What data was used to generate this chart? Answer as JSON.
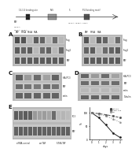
{
  "bg_color": "#e8e8e8",
  "white": "#ffffff",
  "black": "#111111",
  "dark_gray": "#333333",
  "mid_gray": "#888888",
  "light_gray": "#cccccc",
  "gel_bg": "#aaaaaa",
  "gel_band_dark": "#222222",
  "gel_band_light": "#dddddd",
  "schematic_top_labels": [
    "14-3-3 binding site",
    "NLS",
    "5'",
    "P53 binding motif"
  ],
  "schematic_bottom_labels": [
    "TAF",
    "S76A  S92A",
    "S76A  S92A  S8A"
  ],
  "panel_labels": [
    "A",
    "B",
    "C",
    "D",
    "E"
  ],
  "top_labels_A": [
    "TAF",
    "S76A",
    "S92A",
    "S8A"
  ],
  "top_labels_B": [
    "TAF",
    "S76A",
    "S8A"
  ],
  "right_labels_A": [
    "Flag",
    "Flag2",
    "TAF"
  ],
  "right_labels_B": [
    "Flag",
    "Flag2",
    "TAF"
  ],
  "right_labels_C": [
    "IHA-PC3",
    "TAF",
    "actin"
  ],
  "right_labels_D": [
    "IHA-PC3",
    "TAF",
    "actin",
    "Tubulin"
  ],
  "right_labels_E": [
    "PC3",
    "TAF"
  ],
  "bottom_labels_E": [
    "siRNA control",
    "wt TAF",
    "S76A TAF"
  ],
  "graph_xvals": [
    0,
    1,
    2,
    3,
    4
  ],
  "graph_y1": [
    100,
    82,
    55,
    25,
    8
  ],
  "graph_y2": [
    100,
    97,
    93,
    88,
    82
  ],
  "graph_y3": [
    100,
    95,
    88,
    78,
    65
  ],
  "graph_line1_color": "#222222",
  "graph_line2_color": "#555555",
  "graph_line3_color": "#888888",
  "graph_ylabel": "%",
  "graph_xlabel": "days",
  "graph_yticks": [
    0,
    50,
    100
  ],
  "graph_xticks": [
    0,
    1,
    2,
    3,
    4
  ]
}
